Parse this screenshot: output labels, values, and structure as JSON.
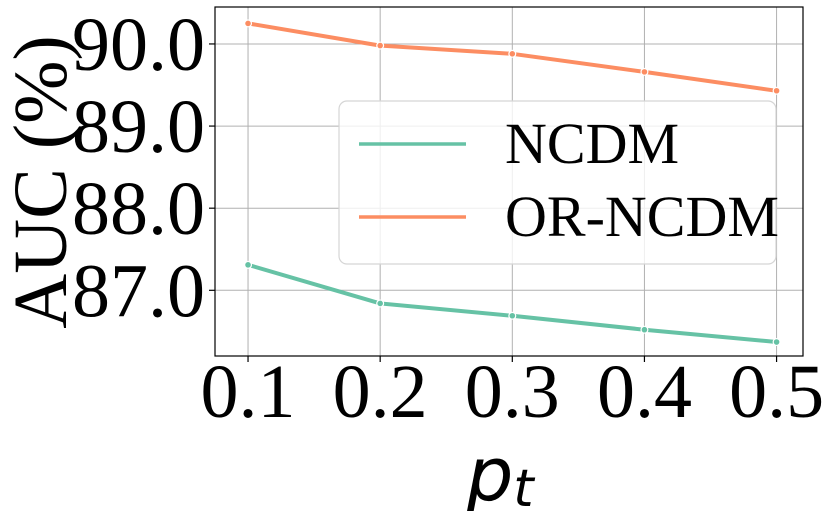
{
  "chart_data": {
    "type": "line",
    "title": "",
    "xlabel": "p_t",
    "xlabel_main": "p",
    "xlabel_sub": "t",
    "ylabel": "AUC (%)",
    "x": [
      0.1,
      0.2,
      0.3,
      0.4,
      0.5
    ],
    "x_tick_labels": [
      "0.1",
      "0.2",
      "0.3",
      "0.4",
      "0.5"
    ],
    "y_tick_values": [
      87.0,
      88.0,
      89.0,
      90.0
    ],
    "y_tick_labels": [
      "87.0",
      "88.0",
      "89.0",
      "90.0"
    ],
    "xlim": [
      0.075,
      0.52
    ],
    "ylim": [
      86.2,
      90.45
    ],
    "grid": true,
    "legend_position": "center-right",
    "series": [
      {
        "name": "NCDM",
        "color": "#66c2a5",
        "values": [
          87.31,
          86.84,
          86.69,
          86.52,
          86.37
        ]
      },
      {
        "name": "OR-NCDM",
        "color": "#fc8d62",
        "values": [
          90.25,
          89.98,
          89.88,
          89.66,
          89.43
        ]
      }
    ]
  }
}
